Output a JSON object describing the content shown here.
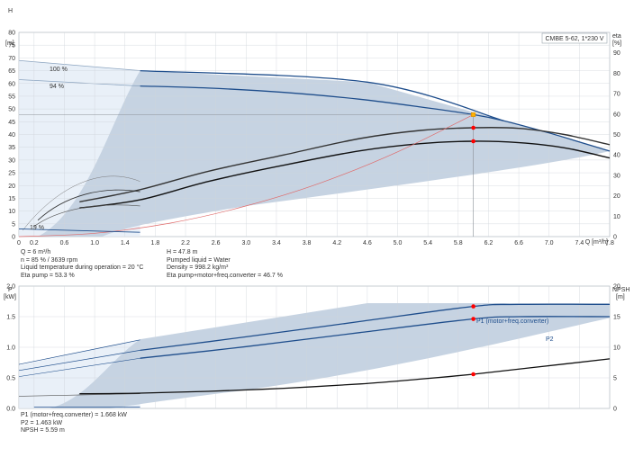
{
  "chart_data": [
    {
      "type": "line",
      "title": "CMBE 5-62, 1*230 V",
      "xlabel": "Q [m³/h]",
      "ylabel": [
        "H",
        "[m]"
      ],
      "y2label": [
        "eta",
        "[%]"
      ],
      "xlim": [
        0,
        7.8
      ],
      "ylim": [
        0,
        80
      ],
      "y2lim": [
        0,
        100
      ],
      "xticks": [
        "0",
        "0.2",
        "0.6",
        "1.0",
        "1.4",
        "1.8",
        "2.2",
        "2.6",
        "3.0",
        "3.4",
        "3.8",
        "4.2",
        "4.6",
        "5.0",
        "5.4",
        "5.8",
        "6.2",
        "6.6",
        "7.0",
        "7.4",
        "7.8"
      ],
      "yticks": [
        0,
        5,
        10,
        15,
        20,
        25,
        30,
        35,
        40,
        45,
        50,
        55,
        60,
        65,
        70,
        75,
        80
      ],
      "y2ticks": [
        0,
        10,
        20,
        30,
        40,
        50,
        60,
        70,
        80,
        90
      ],
      "grid": true,
      "curve_labels": [
        "100 %",
        "94 %",
        "19 %"
      ],
      "duty_point": {
        "q": 6.0,
        "h": 47.8
      },
      "efficiency_markers": [
        {
          "q": 6.0,
          "eta": 53.3
        },
        {
          "q": 6.0,
          "eta": 46.7
        }
      ],
      "series": [
        {
          "name": "94 %",
          "color": "#1f4e8c",
          "x": [
            1.6,
            2.5,
            3.5,
            4.5,
            5.3,
            6.0,
            6.4,
            7.0,
            7.8
          ],
          "y": [
            59,
            58.2,
            56.5,
            53.8,
            50.8,
            47.8,
            45.4,
            40.6,
            33.5
          ]
        },
        {
          "name": "100 %",
          "color": "#1f4e8c",
          "x": [
            1.6,
            4.6,
            6.4
          ],
          "y": [
            65,
            60.5,
            45.4
          ]
        },
        {
          "name": "eta pump",
          "axis": "y2",
          "color": "#333333",
          "x": [
            0.8,
            1.6,
            2.5,
            3.5,
            4.5,
            5.3,
            6.0,
            6.6,
            7.2,
            7.8
          ],
          "y": [
            17,
            23,
            32,
            40,
            48,
            52,
            53.3,
            53,
            50,
            45
          ]
        },
        {
          "name": "eta pump+motor+freq.converter",
          "axis": "y2",
          "color": "#111111",
          "x": [
            0.8,
            1.6,
            2.5,
            3.5,
            4.5,
            5.3,
            6.0,
            6.6,
            7.2,
            7.8
          ],
          "y": [
            14,
            18,
            27,
            35,
            42,
            45.5,
            46.7,
            46,
            43.5,
            38.5
          ]
        },
        {
          "name": "system curve",
          "color": "#e06a6a",
          "x": [
            0,
            1,
            2,
            3,
            4,
            5,
            6
          ],
          "y": [
            0,
            1.3,
            5.3,
            12,
            21.2,
            33.2,
            47.8
          ]
        }
      ]
    },
    {
      "type": "line",
      "xlabel": "",
      "ylabel": [
        "P",
        "[kW]"
      ],
      "y2label": [
        "NPSH",
        "[m]"
      ],
      "xlim": [
        0,
        7.8
      ],
      "ylim": [
        0,
        2.0
      ],
      "y2lim": [
        0,
        20
      ],
      "yticks": [
        "0.0",
        "0.5",
        "1.0",
        "1.5",
        "2.0"
      ],
      "y2ticks": [
        0,
        5,
        10,
        15,
        20
      ],
      "grid": true,
      "series": [
        {
          "name": "P1 (motor+freq.converter)",
          "color": "#1f4e8c",
          "x": [
            1.6,
            3.0,
            4.5,
            6.0,
            6.6,
            7.8
          ],
          "y": [
            0.95,
            1.17,
            1.42,
            1.668,
            1.7,
            1.7
          ]
        },
        {
          "name": "P2",
          "color": "#1f4e8c",
          "x": [
            1.6,
            3.0,
            4.5,
            6.0,
            6.6,
            7.8
          ],
          "y": [
            0.82,
            1.01,
            1.24,
            1.463,
            1.5,
            1.5
          ]
        },
        {
          "name": "NPSH",
          "axis": "y2",
          "color": "#111111",
          "x": [
            0.8,
            1.6,
            2.5,
            3.5,
            4.5,
            5.3,
            6.0,
            6.8,
            7.8
          ],
          "y": [
            2.4,
            2.5,
            2.8,
            3.3,
            4.0,
            4.8,
            5.59,
            6.7,
            8.1
          ]
        }
      ],
      "markers": [
        {
          "q": 6.0,
          "p": 1.668
        },
        {
          "q": 6.0,
          "p": 1.463
        },
        {
          "q": 6.0,
          "npsh": 5.59
        }
      ]
    }
  ],
  "info_top_left": [
    "Q = 6 m³/h",
    "n = 85 % / 3639 rpm",
    "Liquid temperature during operation = 20 °C",
    "Eta pump = 53.3 %"
  ],
  "info_top_right": [
    "H = 47.8 m",
    "Pumped liquid = Water",
    "Density = 998.2 kg/m³",
    "Eta pump+motor+freq.converter = 46.7 %"
  ],
  "info_bottom": [
    "P1 (motor+freq.converter) = 1.668 kW",
    "P2 = 1.463 kW",
    "NPSH = 5.59 m"
  ],
  "colors": {
    "envelope": "#c6d3e2",
    "envelope_light": "#e9f0f8",
    "curve": "#1f4e8c",
    "grid": "#cfd4da",
    "marker": "#ff0000",
    "duty": "#ffb000",
    "system": "#e06a6a"
  }
}
